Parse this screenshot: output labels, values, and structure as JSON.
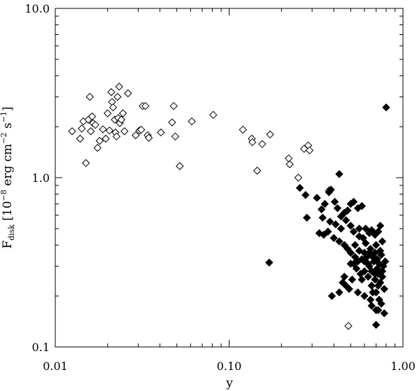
{
  "chart_data": {
    "type": "scatter",
    "title": "",
    "xlabel": "y",
    "ylabel": {
      "main": "F",
      "sub": "disk",
      "bracket_open": " [10",
      "exp1": "−8",
      "mid": " erg cm",
      "exp2": "−2",
      "mid2": " s",
      "exp3": "−1",
      "bracket_close": "]"
    },
    "xscale": "log",
    "yscale": "log",
    "xlim": [
      0.01,
      1.0
    ],
    "ylim": [
      0.1,
      10.0
    ],
    "xticks": [
      {
        "value": 0.01,
        "label": "0.01"
      },
      {
        "value": 0.1,
        "label": "0.10"
      },
      {
        "value": 1.0,
        "label": "1.00"
      }
    ],
    "yticks": [
      {
        "value": 0.1,
        "label": "0.1"
      },
      {
        "value": 1.0,
        "label": "1.0"
      },
      {
        "value": 10.0,
        "label": "10.0"
      }
    ],
    "grid": false,
    "legend": false,
    "series": [
      {
        "marker": "diamond-open",
        "color": "#000000",
        "points": [
          [
            0.0125,
            1.88
          ],
          [
            0.0139,
            1.7
          ],
          [
            0.0142,
            1.95
          ],
          [
            0.0145,
            2.15
          ],
          [
            0.015,
            1.22
          ],
          [
            0.0155,
            2.2
          ],
          [
            0.0158,
            3.0
          ],
          [
            0.016,
            1.88
          ],
          [
            0.0163,
            2.3
          ],
          [
            0.0165,
            2.1
          ],
          [
            0.017,
            2.05
          ],
          [
            0.0175,
            1.5
          ],
          [
            0.018,
            1.65
          ],
          [
            0.0188,
            1.93
          ],
          [
            0.0195,
            1.7
          ],
          [
            0.02,
            2.4
          ],
          [
            0.0205,
            1.9
          ],
          [
            0.021,
            3.2
          ],
          [
            0.0212,
            2.8
          ],
          [
            0.0215,
            2.6
          ],
          [
            0.022,
            2.2
          ],
          [
            0.0222,
            1.85
          ],
          [
            0.0225,
            1.75
          ],
          [
            0.0228,
            3.0
          ],
          [
            0.023,
            2.25
          ],
          [
            0.0233,
            3.45
          ],
          [
            0.0235,
            2.1
          ],
          [
            0.024,
            2.2
          ],
          [
            0.0245,
            2.4
          ],
          [
            0.025,
            1.88
          ],
          [
            0.0262,
            3.15
          ],
          [
            0.029,
            1.78
          ],
          [
            0.0305,
            1.9
          ],
          [
            0.0312,
            1.92
          ],
          [
            0.0318,
            2.65
          ],
          [
            0.033,
            2.65
          ],
          [
            0.034,
            1.78
          ],
          [
            0.0345,
            1.72
          ],
          [
            0.0405,
            1.85
          ],
          [
            0.047,
            2.12
          ],
          [
            0.048,
            2.65
          ],
          [
            0.049,
            1.75
          ],
          [
            0.052,
            1.17
          ],
          [
            0.061,
            2.15
          ],
          [
            0.081,
            2.35
          ],
          [
            0.12,
            1.92
          ],
          [
            0.135,
            1.7
          ],
          [
            0.136,
            1.62
          ],
          [
            0.145,
            1.1
          ],
          [
            0.155,
            1.58
          ],
          [
            0.172,
            1.8
          ],
          [
            0.22,
            1.3
          ],
          [
            0.223,
            1.2
          ],
          [
            0.25,
            1.0
          ],
          [
            0.27,
            1.48
          ],
          [
            0.285,
            1.55
          ],
          [
            0.29,
            1.45
          ],
          [
            0.375,
            0.84
          ],
          [
            0.485,
            0.133
          ]
        ]
      },
      {
        "marker": "diamond-filled",
        "color": "#000000",
        "points": [
          [
            0.8,
            2.6
          ],
          [
            0.17,
            0.315
          ],
          [
            0.43,
            1.05
          ],
          [
            0.255,
            0.87
          ],
          [
            0.275,
            0.79
          ],
          [
            0.32,
            0.76
          ],
          [
            0.355,
            0.7
          ],
          [
            0.375,
            0.82
          ],
          [
            0.385,
            0.85
          ],
          [
            0.405,
            0.72
          ],
          [
            0.42,
            0.66
          ],
          [
            0.44,
            0.59
          ],
          [
            0.46,
            0.62
          ],
          [
            0.48,
            0.64
          ],
          [
            0.5,
            0.7
          ],
          [
            0.52,
            0.72
          ],
          [
            0.55,
            0.66
          ],
          [
            0.58,
            0.68
          ],
          [
            0.34,
            0.65
          ],
          [
            0.28,
            0.58
          ],
          [
            0.345,
            0.58
          ],
          [
            0.38,
            0.55
          ],
          [
            0.41,
            0.53
          ],
          [
            0.44,
            0.5
          ],
          [
            0.47,
            0.56
          ],
          [
            0.5,
            0.52
          ],
          [
            0.52,
            0.48
          ],
          [
            0.56,
            0.5
          ],
          [
            0.59,
            0.44
          ],
          [
            0.61,
            0.5
          ],
          [
            0.64,
            0.47
          ],
          [
            0.66,
            0.49
          ],
          [
            0.69,
            0.46
          ],
          [
            0.72,
            0.48
          ],
          [
            0.74,
            0.52
          ],
          [
            0.33,
            0.47
          ],
          [
            0.35,
            0.46
          ],
          [
            0.37,
            0.48
          ],
          [
            0.4,
            0.44
          ],
          [
            0.43,
            0.42
          ],
          [
            0.46,
            0.4
          ],
          [
            0.48,
            0.38
          ],
          [
            0.5,
            0.36
          ],
          [
            0.53,
            0.34
          ],
          [
            0.56,
            0.37
          ],
          [
            0.58,
            0.33
          ],
          [
            0.6,
            0.32
          ],
          [
            0.62,
            0.35
          ],
          [
            0.64,
            0.3
          ],
          [
            0.65,
            0.38
          ],
          [
            0.67,
            0.34
          ],
          [
            0.69,
            0.36
          ],
          [
            0.71,
            0.33
          ],
          [
            0.73,
            0.31
          ],
          [
            0.75,
            0.35
          ],
          [
            0.77,
            0.3
          ],
          [
            0.79,
            0.32
          ],
          [
            0.52,
            0.31
          ],
          [
            0.54,
            0.29
          ],
          [
            0.57,
            0.27
          ],
          [
            0.6,
            0.28
          ],
          [
            0.63,
            0.26
          ],
          [
            0.66,
            0.28
          ],
          [
            0.69,
            0.25
          ],
          [
            0.72,
            0.27
          ],
          [
            0.74,
            0.24
          ],
          [
            0.76,
            0.26
          ],
          [
            0.78,
            0.22
          ],
          [
            0.45,
            0.24
          ],
          [
            0.47,
            0.23
          ],
          [
            0.49,
            0.22
          ],
          [
            0.51,
            0.25
          ],
          [
            0.43,
            0.21
          ],
          [
            0.46,
            0.26
          ],
          [
            0.39,
            0.2
          ],
          [
            0.55,
            0.21
          ],
          [
            0.6,
            0.2
          ],
          [
            0.65,
            0.19
          ],
          [
            0.7,
            0.21
          ],
          [
            0.73,
            0.19
          ],
          [
            0.75,
            0.18
          ],
          [
            0.7,
            0.165
          ],
          [
            0.66,
            0.175
          ],
          [
            0.72,
            0.165
          ],
          [
            0.78,
            0.158
          ],
          [
            0.7,
            0.135
          ],
          [
            0.62,
            0.34
          ],
          [
            0.68,
            0.32
          ],
          [
            0.71,
            0.29
          ],
          [
            0.66,
            0.23
          ],
          [
            0.58,
            0.25
          ],
          [
            0.53,
            0.4
          ],
          [
            0.61,
            0.41
          ],
          [
            0.7,
            0.4
          ],
          [
            0.76,
            0.42
          ],
          [
            0.56,
            0.45
          ],
          [
            0.5,
            0.31
          ],
          [
            0.64,
            0.36
          ],
          [
            0.74,
            0.37
          ],
          [
            0.6,
            0.36
          ],
          [
            0.76,
            0.28
          ],
          [
            0.69,
            0.27
          ],
          [
            0.55,
            0.32
          ],
          [
            0.63,
            0.31
          ],
          [
            0.72,
            0.23
          ],
          [
            0.67,
            0.21
          ]
        ]
      }
    ]
  }
}
